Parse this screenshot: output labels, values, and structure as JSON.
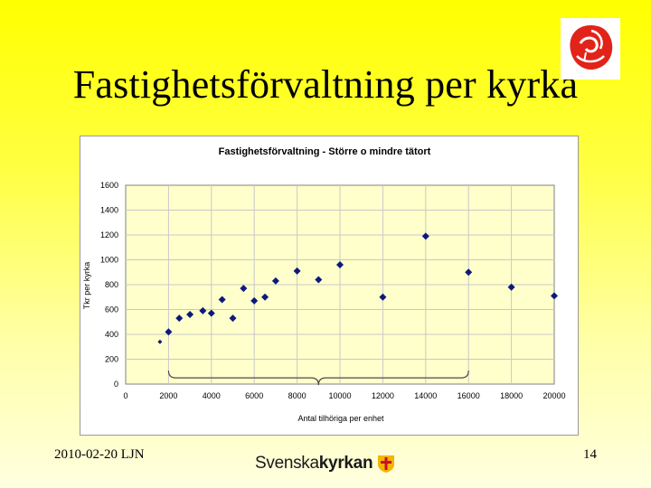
{
  "slide": {
    "title": "Fastighetsförvaltning per kyrka",
    "footer_date": "2010-02-20 LJN",
    "page_number": "14",
    "brand_part1": "Svenska",
    "brand_part2": "kyrkan"
  },
  "logos": {
    "rose_icon": "social-democrat-rose-icon",
    "brand_cross_icon": "church-cross-logo-icon"
  },
  "colors": {
    "plot_area": "#ffffcc",
    "marker": "#0d1a7a",
    "slide_gradient_top": "#ffff00"
  },
  "chart_data": {
    "type": "scatter",
    "title": "Fastighetsförvaltning - Större o mindre tätort",
    "xlabel": "Antal tilhöriga per enhet",
    "ylabel": "Tkr per kyrka",
    "xlim": [
      0,
      20000
    ],
    "ylim": [
      0,
      1600
    ],
    "x_ticks": [
      "0",
      "2000",
      "4000",
      "6000",
      "8000",
      "10000",
      "12000",
      "14000",
      "16000",
      "18000",
      "20000"
    ],
    "y_ticks": [
      "0",
      "200",
      "400",
      "600",
      "800",
      "1000",
      "1200",
      "1400",
      "1600"
    ],
    "grid": true,
    "series": [
      {
        "points": [
          {
            "x": 1600,
            "y": 340
          },
          {
            "x": 2000,
            "y": 420
          },
          {
            "x": 2500,
            "y": 530
          },
          {
            "x": 3000,
            "y": 560
          },
          {
            "x": 3600,
            "y": 590
          },
          {
            "x": 4000,
            "y": 570
          },
          {
            "x": 4500,
            "y": 680
          },
          {
            "x": 5000,
            "y": 530
          },
          {
            "x": 5500,
            "y": 770
          },
          {
            "x": 6000,
            "y": 670
          },
          {
            "x": 6500,
            "y": 700
          },
          {
            "x": 7000,
            "y": 830
          },
          {
            "x": 8000,
            "y": 910
          },
          {
            "x": 9000,
            "y": 840
          },
          {
            "x": 10000,
            "y": 960
          },
          {
            "x": 12000,
            "y": 700
          },
          {
            "x": 14000,
            "y": 1190
          },
          {
            "x": 16000,
            "y": 900
          },
          {
            "x": 18000,
            "y": 780
          },
          {
            "x": 20000,
            "y": 710
          }
        ]
      }
    ],
    "brace_range": [
      2000,
      16000
    ]
  }
}
